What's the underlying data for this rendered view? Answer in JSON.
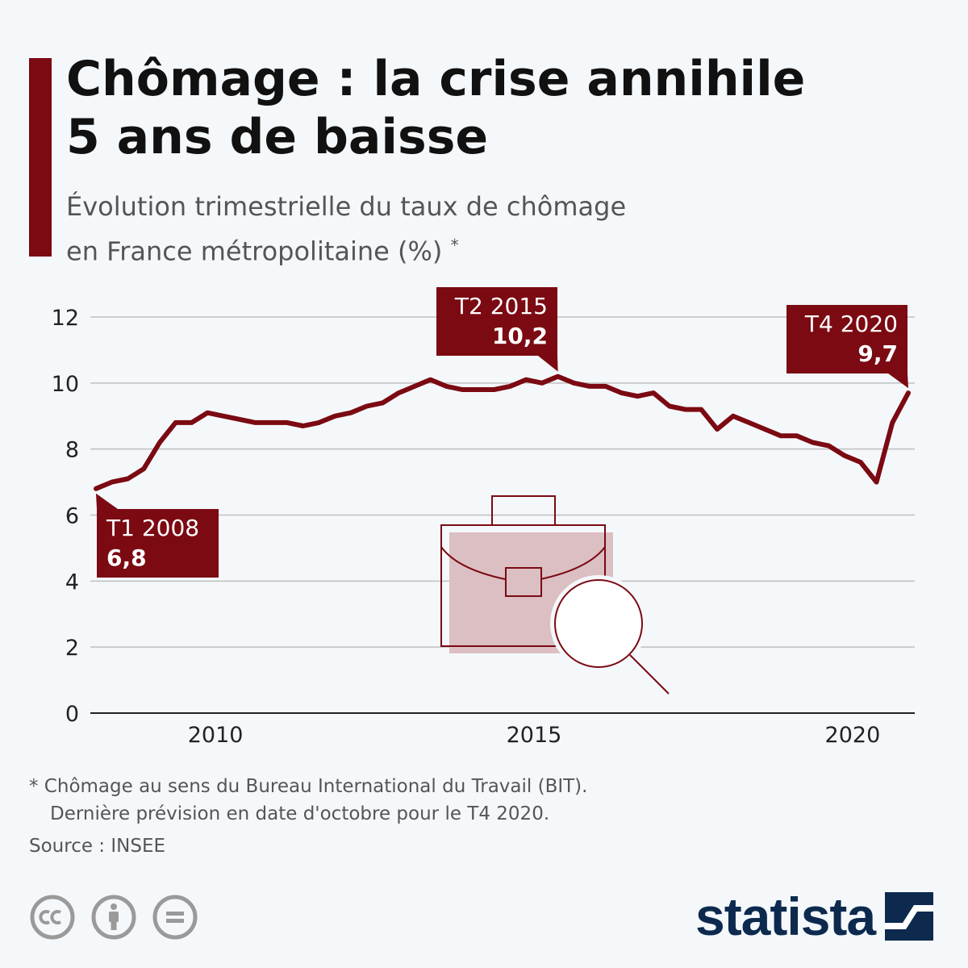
{
  "header": {
    "title_line1": "Chômage : la crise annihile",
    "title_line2": "5 ans de baisse",
    "subtitle_line1": "Évolution trimestrielle du taux de chômage",
    "subtitle_line2": "en France métropolitaine (%)",
    "subtitle_mark": "*"
  },
  "colors": {
    "accent": "#7b0a12",
    "line": "#7b0a12",
    "grid": "#bfbfbf",
    "brand": "#0d2a4e",
    "icon_fill": "#dbbfc3"
  },
  "chart_data": {
    "type": "line",
    "title": "Chômage : la crise annihile 5 ans de baisse",
    "subtitle": "Évolution trimestrielle du taux de chômage en France métropolitaine (%)",
    "xlabel": "",
    "ylabel": "",
    "ylim": [
      0,
      12
    ],
    "y_ticks": [
      0,
      2,
      4,
      6,
      8,
      10,
      12
    ],
    "x_ticks": [
      "2010",
      "2015",
      "2020"
    ],
    "grid": true,
    "series": [
      {
        "x": [
          "T1 2008",
          "T2 2008",
          "T3 2008",
          "T4 2008",
          "T1 2009",
          "T2 2009",
          "T3 2009",
          "T4 2009",
          "T1 2010",
          "T2 2010",
          "T3 2010",
          "T4 2010",
          "T1 2011",
          "T2 2011",
          "T3 2011",
          "T4 2011",
          "T1 2012",
          "T2 2012",
          "T3 2012",
          "T4 2012",
          "T1 2013",
          "T2 2013",
          "T3 2013",
          "T4 2013",
          "T1 2014",
          "T2 2014",
          "T3 2014",
          "T4 2014",
          "T1 2015",
          "T2 2015",
          "T3 2015",
          "T4 2015",
          "T1 2016",
          "T2 2016",
          "T3 2016",
          "T4 2016",
          "T1 2017",
          "T2 2017",
          "T3 2017",
          "T4 2017",
          "T1 2018",
          "T2 2018",
          "T3 2018",
          "T4 2018",
          "T1 2019",
          "T2 2019",
          "T3 2019",
          "T4 2019",
          "T1 2020",
          "T2 2020",
          "T3 2020",
          "T4 2020"
        ],
        "values": [
          6.8,
          7.0,
          7.1,
          7.4,
          8.2,
          8.8,
          8.8,
          9.1,
          9.0,
          8.9,
          8.8,
          8.8,
          8.8,
          8.7,
          8.8,
          9.0,
          9.1,
          9.3,
          9.4,
          9.7,
          9.9,
          10.1,
          9.9,
          9.8,
          9.8,
          9.8,
          9.9,
          10.1,
          10.0,
          10.2,
          10.0,
          9.9,
          9.9,
          9.7,
          9.6,
          9.7,
          9.3,
          9.2,
          9.2,
          8.6,
          9.0,
          8.8,
          8.6,
          8.4,
          8.4,
          8.2,
          8.1,
          7.8,
          7.6,
          7.0,
          8.8,
          9.7
        ]
      }
    ],
    "annotations": [
      {
        "label": "T1 2008",
        "value": "6,8"
      },
      {
        "label": "T2 2015",
        "value": "10,2"
      },
      {
        "label": "T4 2020",
        "value": "9,7"
      }
    ]
  },
  "footer": {
    "note_line1": "* Chômage au sens du Bureau International du Travail (BIT).",
    "note_line2": "Dernière prévision en date d'octobre pour le T4 2020.",
    "source": "Source : INSEE",
    "brand": "statista"
  }
}
